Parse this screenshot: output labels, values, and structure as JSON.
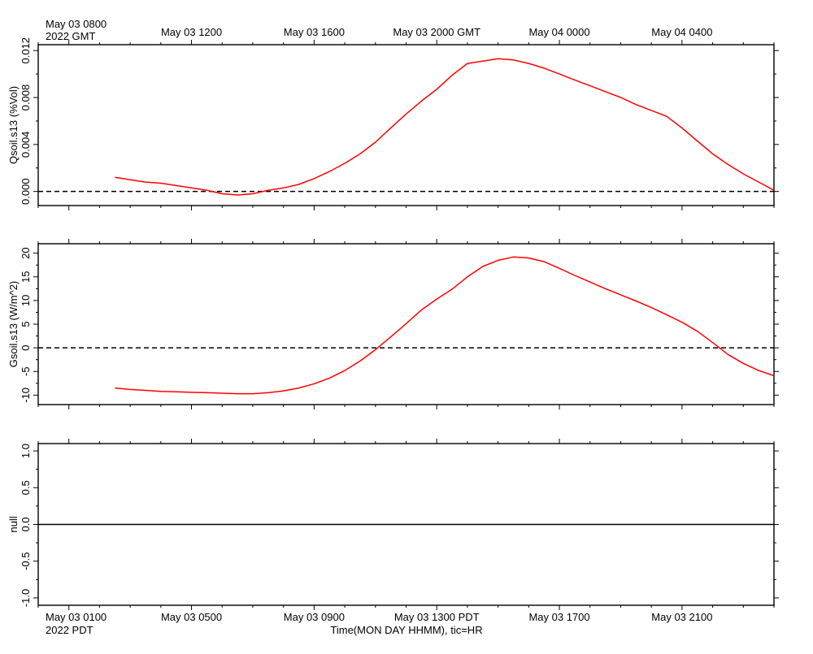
{
  "top_axis": {
    "first_label_line1": "May 03 0800",
    "first_label_line2": "2022 GMT",
    "labels": [
      "May 03 1200",
      "May 03 1600",
      "May 03 2000 GMT",
      "May 04 0000",
      "May 04 0400"
    ]
  },
  "bottom_axis": {
    "first_label_line1": "May 03 0100",
    "first_label_line2": "2022 PDT",
    "labels": [
      "May 03 0500",
      "May 03 0900",
      "May 03 1300 PDT",
      "May 03 1700",
      "May 03 2100"
    ],
    "xlabel": "Time(MON DAY HHMM), tic=HR"
  },
  "colors": {
    "series": "#ff0000",
    "axis": "#000000"
  },
  "chart_data": [
    {
      "type": "line",
      "ylabel": "Qsoil.s13 (%Vol)",
      "xunit": "hours since May 03 0100 PDT",
      "xlim": [
        -1,
        23
      ],
      "ylim": [
        -0.0012,
        0.0125
      ],
      "yticks": [
        "0.000",
        "0.004",
        "0.008",
        "0.012"
      ],
      "yticks_values": [
        0,
        0.004,
        0.008,
        0.012
      ],
      "reference_line": 0,
      "reference_style": "dashed",
      "series": [
        {
          "x": [
            1.5,
            2.0,
            2.5,
            3.0,
            3.5,
            4.0,
            4.5,
            5.0,
            5.5,
            6.0,
            6.5,
            7.0,
            7.5,
            8.0,
            8.5,
            9.0,
            9.5,
            10.0,
            10.5,
            11.0,
            11.5,
            12.0,
            12.5,
            13.0,
            13.5,
            14.0,
            14.5,
            15.0,
            15.5,
            16.0,
            16.5,
            17.0,
            17.5,
            18.0,
            18.5,
            19.0,
            19.5,
            20.0,
            20.5,
            21.0,
            21.5,
            22.0,
            22.5,
            23.0
          ],
          "values": [
            0.0012,
            0.001,
            0.0008,
            0.0007,
            0.0005,
            0.0003,
            0.0001,
            -0.0002,
            -0.0003,
            -0.0002,
            0.0001,
            0.0003,
            0.0006,
            0.0011,
            0.0017,
            0.0024,
            0.0032,
            0.0042,
            0.0054,
            0.0066,
            0.0077,
            0.0087,
            0.0099,
            0.0109,
            0.0111,
            0.0113,
            0.0112,
            0.0109,
            0.0105,
            0.01,
            0.0095,
            0.009,
            0.0085,
            0.008,
            0.0074,
            0.0069,
            0.0064,
            0.0054,
            0.0043,
            0.0032,
            0.0023,
            0.0015,
            0.0008,
            0.0001
          ]
        }
      ]
    },
    {
      "type": "line",
      "ylabel": "Gsoil.s13 (W/m^2)",
      "xunit": "hours since May 03 0100 PDT",
      "xlim": [
        -1,
        23
      ],
      "ylim": [
        -12,
        22
      ],
      "yticks": [
        "-10",
        "-5",
        "0",
        "5",
        "10",
        "15",
        "20"
      ],
      "yticks_values": [
        -10,
        -5,
        0,
        5,
        10,
        15,
        20
      ],
      "reference_line": 0,
      "reference_style": "dashed",
      "series": [
        {
          "x": [
            1.5,
            2.0,
            2.5,
            3.0,
            3.5,
            4.0,
            4.5,
            5.0,
            5.5,
            6.0,
            6.5,
            7.0,
            7.5,
            8.0,
            8.5,
            9.0,
            9.5,
            10.0,
            10.5,
            11.0,
            11.5,
            12.0,
            12.5,
            13.0,
            13.5,
            14.0,
            14.5,
            15.0,
            15.5,
            16.0,
            16.5,
            17.0,
            17.5,
            18.0,
            18.5,
            19.0,
            19.5,
            20.0,
            20.5,
            21.0,
            21.5,
            22.0,
            22.5,
            23.0
          ],
          "values": [
            -8.5,
            -8.8,
            -9.0,
            -9.2,
            -9.3,
            -9.4,
            -9.5,
            -9.6,
            -9.7,
            -9.7,
            -9.5,
            -9.1,
            -8.5,
            -7.6,
            -6.4,
            -4.8,
            -2.8,
            -0.4,
            2.3,
            5.1,
            8.0,
            10.3,
            12.4,
            15.0,
            17.2,
            18.5,
            19.2,
            19.0,
            18.2,
            16.8,
            15.3,
            13.9,
            12.5,
            11.2,
            9.9,
            8.5,
            7.0,
            5.4,
            3.5,
            1.1,
            -1.4,
            -3.3,
            -4.8,
            -5.9
          ]
        }
      ]
    },
    {
      "type": "line",
      "ylabel": "null",
      "xunit": "hours since May 03 0100 PDT",
      "xlim": [
        -1,
        23
      ],
      "ylim": [
        -1.1,
        1.1
      ],
      "yticks": [
        "-1.0",
        "-0.5",
        "0.0",
        "0.5",
        "1.0"
      ],
      "yticks_values": [
        -1.0,
        -0.5,
        0.0,
        0.5,
        1.0
      ],
      "reference_line": 0,
      "reference_style": "solid",
      "series": []
    }
  ]
}
